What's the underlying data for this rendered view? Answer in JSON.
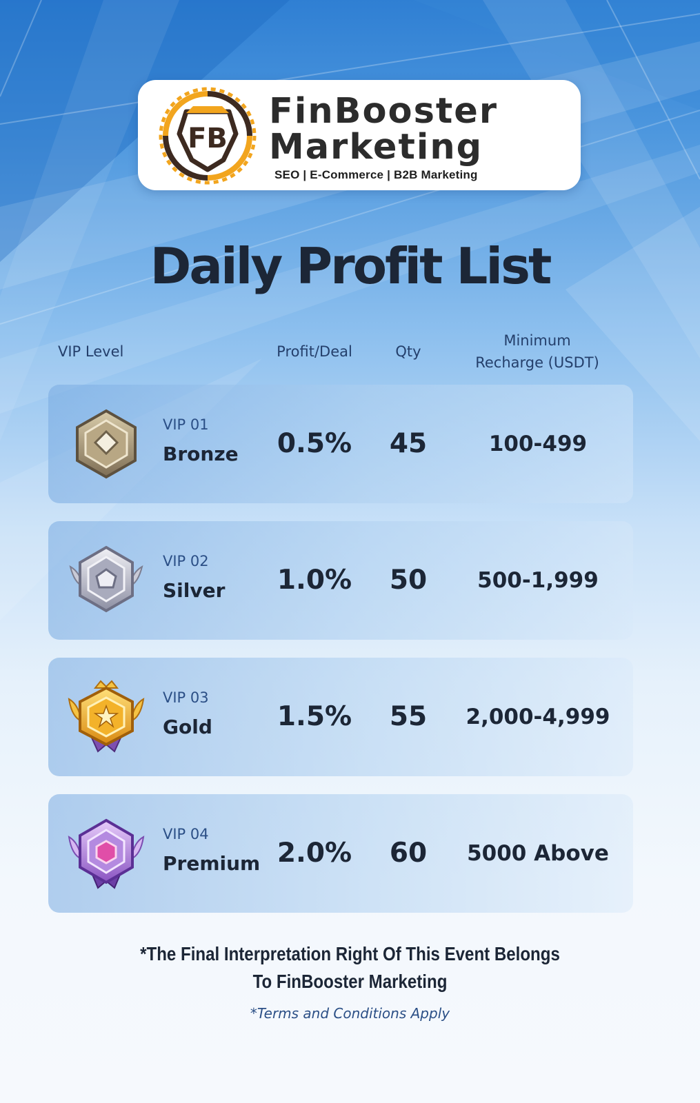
{
  "colors": {
    "accent_orange": "#f2a51e",
    "dark_brown": "#3d2a20",
    "title_navy": "#1c2636",
    "header_blue": "#243f6b",
    "row_tint": "#9ec4ec"
  },
  "logo": {
    "monogram": "FB",
    "brand_line1": "FinBooster",
    "brand_line2": "Marketing",
    "tagline": "SEO | E-Commerce | B2B Marketing"
  },
  "title": "Daily Profit List",
  "columns": {
    "vip_level": "VIP Level",
    "profit_deal": "Profit/Deal",
    "qty": "Qty",
    "min_recharge_line1": "Minimum",
    "min_recharge_line2": "Recharge (USDT)"
  },
  "tiers": [
    {
      "code": "VIP 01",
      "name": "Bronze",
      "profit": "0.5%",
      "qty": "45",
      "min_recharge": "100-499",
      "badge_icon": "bronze-badge-icon"
    },
    {
      "code": "VIP 02",
      "name": "Silver",
      "profit": "1.0%",
      "qty": "50",
      "min_recharge": "500-1,999",
      "badge_icon": "silver-badge-icon"
    },
    {
      "code": "VIP 03",
      "name": "Gold",
      "profit": "1.5%",
      "qty": "55",
      "min_recharge": "2,000-4,999",
      "badge_icon": "gold-badge-icon"
    },
    {
      "code": "VIP 04",
      "name": "Premium",
      "profit": "2.0%",
      "qty": "60",
      "min_recharge": "5000 Above",
      "badge_icon": "premium-badge-icon"
    }
  ],
  "footer": {
    "note_line1": "*The Final Interpretation Right Of This Event Belongs",
    "note_line2": "To FinBooster Marketing",
    "terms": "*Terms and Conditions Apply"
  }
}
